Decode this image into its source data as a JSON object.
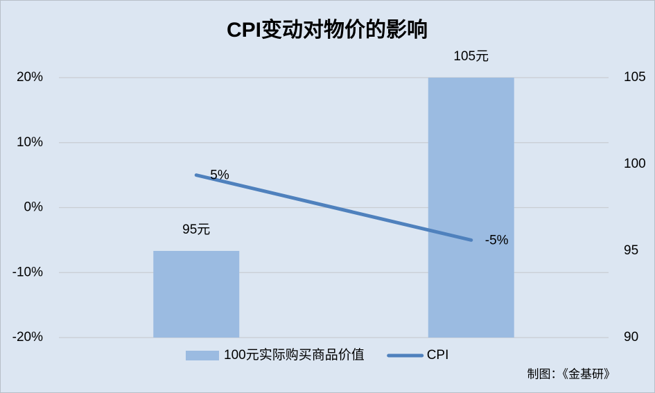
{
  "chart_data": {
    "type": "bar",
    "title": "CPI变动对物价的影响",
    "categories": [
      null,
      null
    ],
    "series": [
      {
        "name": "100元实际购买商品价值",
        "type": "bar",
        "axis": "y2",
        "color": "#9bbbe1",
        "values": [
          95,
          105
        ],
        "value_labels": [
          "95元",
          "105元"
        ]
      },
      {
        "name": "CPI",
        "type": "line",
        "color": "#4f81bd",
        "values": [
          5,
          -5
        ],
        "value_labels": [
          "5%",
          "-5%"
        ]
      }
    ],
    "ylim": [
      -20,
      20
    ],
    "yticks": [
      {
        "value": -20,
        "label": "-20%"
      },
      {
        "value": -10,
        "label": "-10%"
      },
      {
        "value": 0,
        "label": "0%"
      },
      {
        "value": 10,
        "label": "10%"
      },
      {
        "value": 20,
        "label": "20%"
      }
    ],
    "y2lim": [
      90,
      105
    ],
    "y2ticks": [
      90,
      95,
      100,
      105
    ],
    "grid": true,
    "legend": "bottom"
  },
  "source": "制图：《金基研》"
}
